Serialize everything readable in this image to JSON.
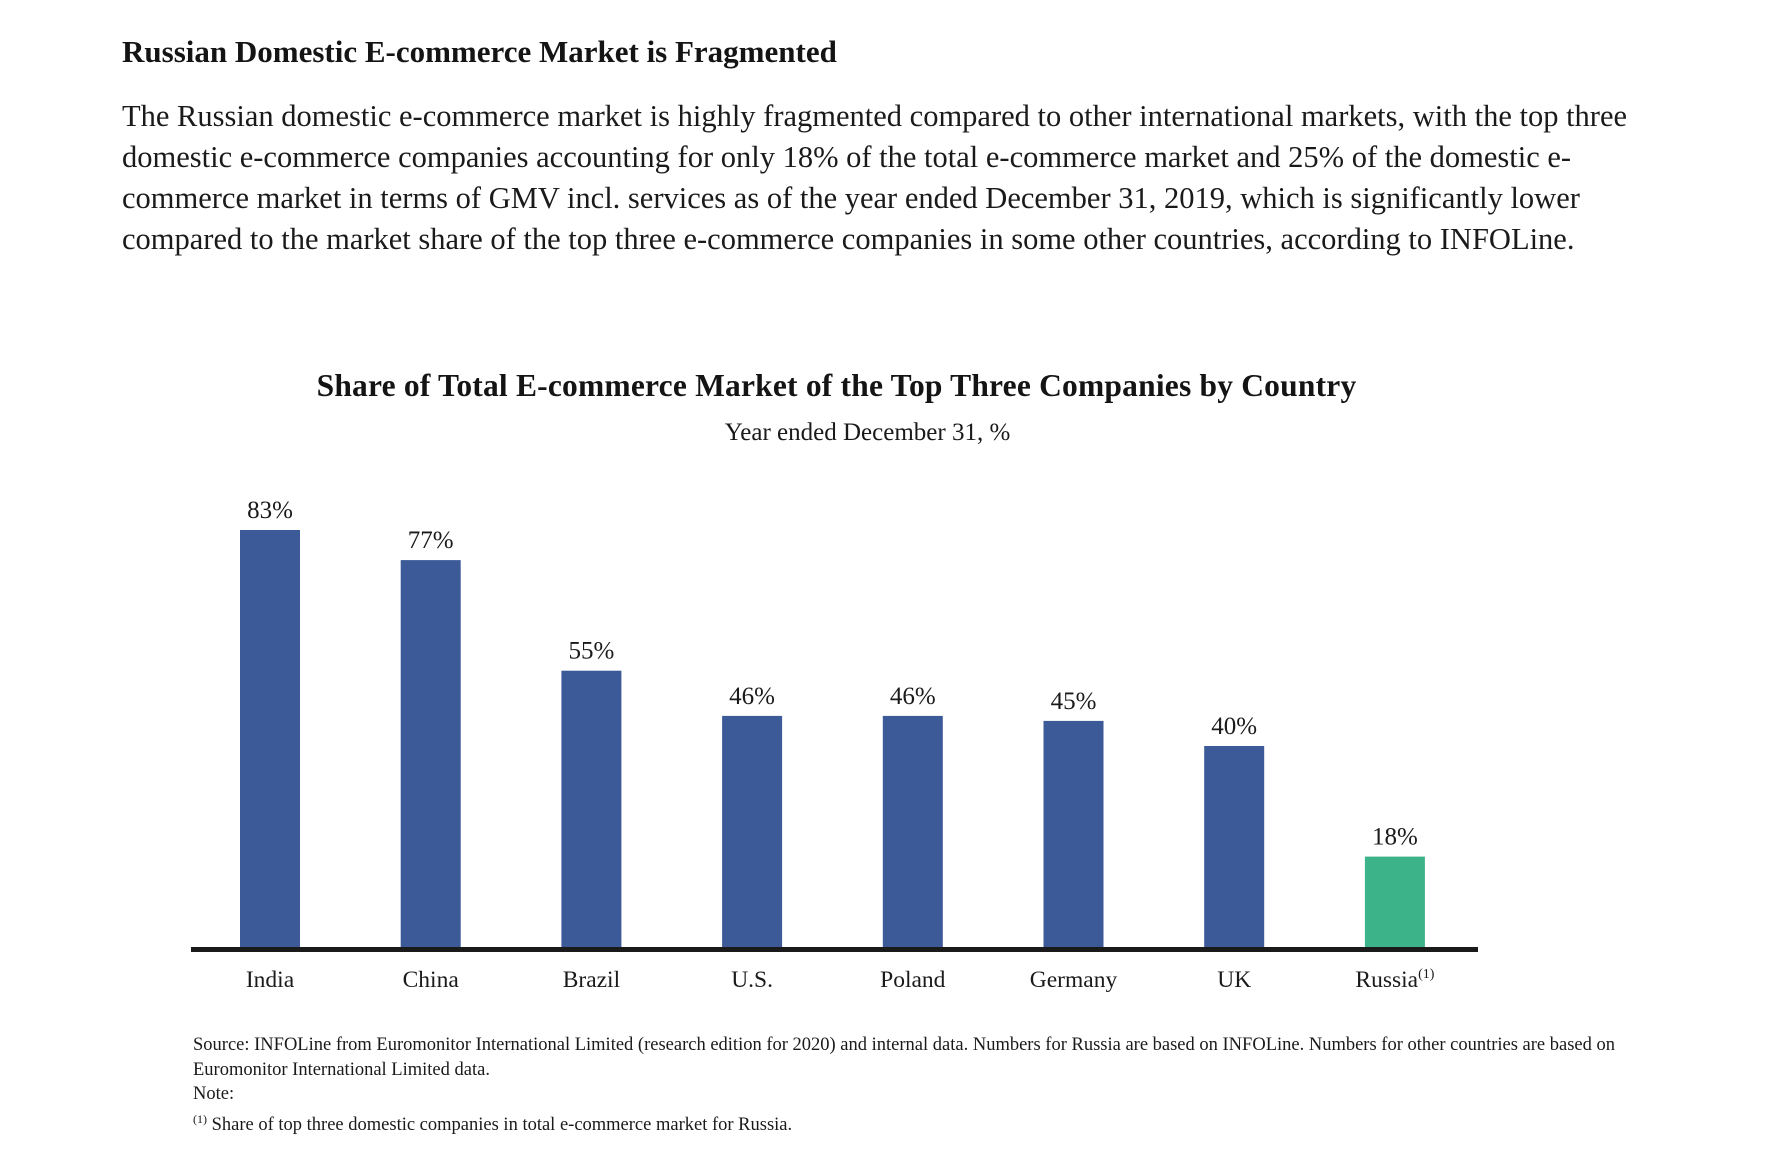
{
  "heading": "Russian Domestic E-commerce Market is Fragmented",
  "paragraph": "The Russian domestic e-commerce market is highly fragmented compared to other international markets, with the top three domestic e-commerce companies accounting for only 18% of the total e-commerce market and 25% of the domestic e-commerce market in terms of GMV incl. services as of the year ended December 31, 2019, which is significantly lower compared to the market share of the top three e-commerce companies in some other countries, according to INFOLine.",
  "chart_data": {
    "type": "bar",
    "title": "Share of Total E-commerce  Market of the Top Three Companies by Country",
    "subtitle": "Year ended December 31, %",
    "categories": [
      "India",
      "China",
      "Brazil",
      "U.S.",
      "Poland",
      "Germany",
      "UK",
      "Russia"
    ],
    "category_superscripts": [
      "",
      "",
      "",
      "",
      "",
      "",
      "",
      "(1)"
    ],
    "values": [
      83,
      77,
      55,
      46,
      46,
      45,
      40,
      18
    ],
    "value_labels": [
      "83%",
      "77%",
      "55%",
      "46%",
      "46%",
      "45%",
      "40%",
      "18%"
    ],
    "bar_colors": [
      "#3d5a98",
      "#3d5a98",
      "#3d5a98",
      "#3d5a98",
      "#3d5a98",
      "#3d5a98",
      "#3d5a98",
      "#3db38a"
    ],
    "xlabel": "",
    "ylabel": "",
    "ylim": [
      0,
      83
    ],
    "grid": false,
    "legend": "none"
  },
  "footnotes": {
    "source": "Source: INFOLine from Euromonitor International Limited (research edition for 2020) and internal data. Numbers for Russia are based on INFOLine. Numbers for other countries are based on Euromonitor International Limited data.",
    "note_label": "Note:",
    "note_marker": "(1)",
    "note_text": "Share of top three domestic companies in total e-commerce market  for Russia."
  },
  "colors": {
    "bar_primary": "#3d5a98",
    "bar_highlight": "#3db38a",
    "axis": "#1a1a1a"
  }
}
